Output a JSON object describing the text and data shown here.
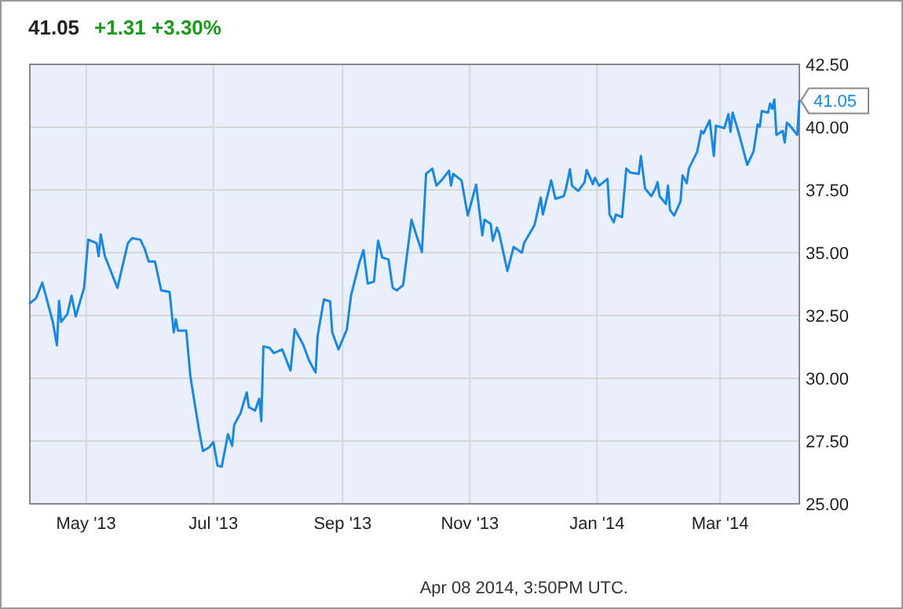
{
  "chart_data": {
    "type": "line",
    "title": "41.05",
    "subtitle": "+1.31 +3.30%",
    "x": [
      "2013-04-04",
      "2013-04-07",
      "2013-04-10",
      "2013-04-15",
      "2013-04-17",
      "2013-04-18",
      "2013-04-19",
      "2013-04-22",
      "2013-04-24",
      "2013-04-26",
      "2013-04-30",
      "2013-05-02",
      "2013-05-06",
      "2013-05-07",
      "2013-05-08",
      "2013-05-10",
      "2013-05-14",
      "2013-05-16",
      "2013-05-21",
      "2013-05-23",
      "2013-05-27",
      "2013-05-29",
      "2013-05-31",
      "2013-06-03",
      "2013-06-06",
      "2013-06-10",
      "2013-06-12",
      "2013-06-13",
      "2013-06-14",
      "2013-06-18",
      "2013-06-20",
      "2013-06-24",
      "2013-06-26",
      "2013-06-29",
      "2013-07-01",
      "2013-07-03",
      "2013-07-05",
      "2013-07-08",
      "2013-07-10",
      "2013-07-11",
      "2013-07-14",
      "2013-07-17",
      "2013-07-18",
      "2013-07-21",
      "2013-07-23",
      "2013-07-24",
      "2013-07-25",
      "2013-07-28",
      "2013-07-30",
      "2013-08-03",
      "2013-08-07",
      "2013-08-09",
      "2013-08-13",
      "2013-08-16",
      "2013-08-19",
      "2013-08-20",
      "2013-08-23",
      "2013-08-26",
      "2013-08-27",
      "2013-08-30",
      "2013-09-03",
      "2013-09-05",
      "2013-09-09",
      "2013-09-11",
      "2013-09-13",
      "2013-09-16",
      "2013-09-18",
      "2013-09-20",
      "2013-09-23",
      "2013-09-25",
      "2013-09-27",
      "2013-09-30",
      "2013-10-04",
      "2013-10-09",
      "2013-10-11",
      "2013-10-14",
      "2013-10-16",
      "2013-10-19",
      "2013-10-22",
      "2013-10-23",
      "2013-10-24",
      "2013-10-28",
      "2013-10-31",
      "2013-11-04",
      "2013-11-07",
      "2013-11-08",
      "2013-11-11",
      "2013-11-12",
      "2013-11-14",
      "2013-11-15",
      "2013-11-19",
      "2013-11-22",
      "2013-11-26",
      "2013-11-27",
      "2013-12-02",
      "2013-12-05",
      "2013-12-06",
      "2013-12-10",
      "2013-12-12",
      "2013-12-16",
      "2013-12-17",
      "2013-12-19",
      "2013-12-20",
      "2013-12-23",
      "2013-12-26",
      "2013-12-27",
      "2013-12-30",
      "2013-12-31",
      "2014-01-02",
      "2014-01-06",
      "2014-01-07",
      "2014-01-09",
      "2014-01-10",
      "2014-01-13",
      "2014-01-15",
      "2014-01-17",
      "2014-01-21",
      "2014-01-22",
      "2014-01-24",
      "2014-01-27",
      "2014-01-29",
      "2014-01-30",
      "2014-01-31",
      "2014-02-03",
      "2014-02-04",
      "2014-02-05",
      "2014-02-07",
      "2014-02-10",
      "2014-02-11",
      "2014-02-13",
      "2014-02-14",
      "2014-02-18",
      "2014-02-20",
      "2014-02-21",
      "2014-02-24",
      "2014-02-26",
      "2014-02-27",
      "2014-03-03",
      "2014-03-05",
      "2014-03-06",
      "2014-03-07",
      "2014-03-10",
      "2014-03-12",
      "2014-03-14",
      "2014-03-17",
      "2014-03-19",
      "2014-03-20",
      "2014-03-21",
      "2014-03-24",
      "2014-03-25",
      "2014-03-26",
      "2014-03-27",
      "2014-03-28",
      "2014-03-31",
      "2014-04-01",
      "2014-04-02",
      "2014-04-03",
      "2014-04-07",
      "2014-04-08"
    ],
    "series": [
      {
        "color": "#1a88e0",
        "values": [
          32.98,
          33.19,
          33.81,
          32.25,
          31.31,
          33.08,
          32.25,
          32.56,
          33.29,
          32.46,
          33.6,
          35.52,
          35.38,
          34.86,
          35.73,
          34.86,
          34.02,
          33.6,
          35.38,
          35.58,
          35.52,
          35.17,
          34.65,
          34.65,
          33.5,
          33.44,
          31.83,
          32.35,
          31.9,
          31.9,
          30.06,
          28.0,
          27.1,
          27.25,
          27.46,
          26.52,
          26.48,
          27.77,
          27.31,
          28.15,
          28.6,
          29.44,
          28.85,
          28.71,
          29.19,
          28.29,
          31.27,
          31.21,
          31.0,
          31.15,
          30.31,
          31.96,
          31.35,
          30.69,
          30.23,
          31.69,
          33.14,
          33.06,
          31.83,
          31.15,
          31.94,
          33.29,
          34.6,
          35.1,
          33.77,
          33.85,
          35.48,
          34.81,
          34.73,
          33.6,
          33.5,
          33.71,
          36.31,
          35.02,
          38.14,
          38.35,
          37.67,
          37.94,
          38.27,
          37.67,
          38.14,
          37.88,
          36.48,
          37.71,
          35.69,
          36.31,
          36.15,
          35.48,
          36.0,
          35.79,
          34.27,
          35.23,
          35.0,
          35.38,
          36.1,
          37.2,
          36.52,
          37.88,
          37.15,
          37.25,
          37.52,
          38.33,
          37.67,
          37.46,
          37.81,
          38.29,
          37.73,
          37.98,
          37.67,
          37.94,
          36.52,
          36.21,
          36.52,
          36.42,
          38.35,
          38.19,
          38.14,
          38.85,
          37.56,
          37.25,
          37.56,
          37.81,
          37.25,
          36.94,
          37.67,
          36.69,
          36.48,
          37.04,
          38.08,
          37.77,
          38.35,
          39.02,
          39.85,
          39.75,
          40.27,
          38.85,
          40.06,
          39.96,
          40.52,
          39.81,
          40.58,
          39.75,
          39.13,
          38.5,
          39.02,
          40.11,
          40.02,
          40.64,
          40.58,
          40.94,
          40.73,
          41.1,
          39.69,
          39.85,
          39.39,
          40.17,
          40.11,
          39.69,
          41.05
        ]
      }
    ],
    "xlim": [
      "2013-04-04",
      "2014-04-08"
    ],
    "xticks": [
      {
        "value": "2013-05-01",
        "label": "May '13"
      },
      {
        "value": "2013-07-01",
        "label": "Jul '13"
      },
      {
        "value": "2013-09-01",
        "label": "Sep '13"
      },
      {
        "value": "2013-11-01",
        "label": "Nov '13"
      },
      {
        "value": "2014-01-01",
        "label": "Jan '14"
      },
      {
        "value": "2014-03-01",
        "label": "Mar '14"
      }
    ],
    "ylim": [
      25,
      42.5
    ],
    "yticks": [
      {
        "value": 25,
        "label": "25.00"
      },
      {
        "value": 27.5,
        "label": "27.50"
      },
      {
        "value": 30,
        "label": "30.00"
      },
      {
        "value": 32.5,
        "label": "32.50"
      },
      {
        "value": 35,
        "label": "35.00"
      },
      {
        "value": 37.5,
        "label": "37.50"
      },
      {
        "value": 40,
        "label": "40.00"
      },
      {
        "value": 42.5,
        "label": "42.50"
      }
    ],
    "grid": true,
    "annotations": [
      {
        "text": "41.05",
        "x": "2014-04-08",
        "y": 41.05
      },
      "Apr 08 2014, 3:50PM UTC."
    ]
  }
}
